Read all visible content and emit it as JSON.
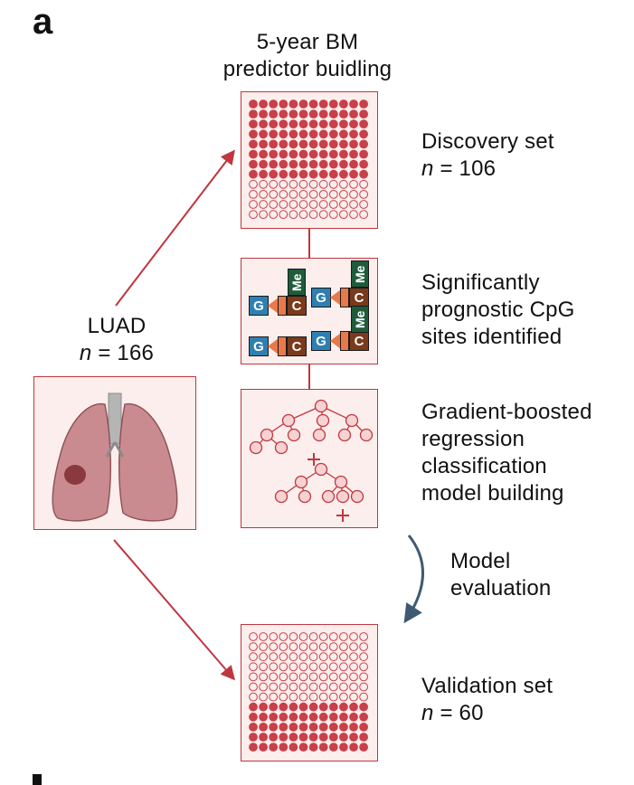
{
  "panel_label": "a",
  "top_title": [
    "5-year BM",
    "predictor buidling"
  ],
  "luad": {
    "label": "LUAD",
    "n_prefix": "n",
    "n_value": "= 166"
  },
  "discovery": {
    "label": "Discovery set",
    "n_prefix": "n",
    "n_value": "= 106"
  },
  "cpg_step": {
    "lines": [
      "Significantly",
      "prognostic CpG",
      "sites identified"
    ]
  },
  "model_step": {
    "lines": [
      "Gradient-boosted",
      "regression",
      "classification",
      "model building"
    ]
  },
  "evaluation": {
    "lines": [
      "Model",
      "evaluation"
    ]
  },
  "validation": {
    "label": "Validation set",
    "n_prefix": "n",
    "n_value": "= 60"
  },
  "cpg_tiles": {
    "g": "G",
    "c": "C",
    "me": "Me"
  },
  "colors": {
    "accent_red": "#c0363f",
    "filled_dot": "#c8404a",
    "box_bg": "#fbeeec",
    "lung": "#c98b8f",
    "tumor": "#8a3a3f",
    "arrow_blue": "#3e5a73"
  },
  "grids": {
    "discovery": {
      "rows": 12,
      "cols": 12,
      "filled_rows": 8
    },
    "validation": {
      "rows": 12,
      "cols": 12,
      "filled_rows": 5,
      "filled_at": "bottom"
    }
  }
}
